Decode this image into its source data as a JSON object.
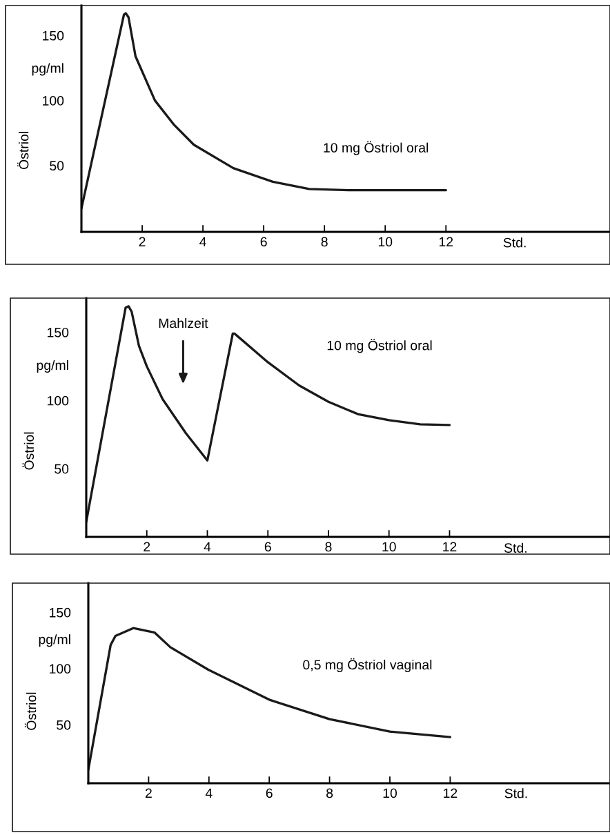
{
  "chart_data": [
    {
      "type": "line",
      "xlabel": "Std.",
      "ylabel": "Östriol",
      "marker": "none",
      "line_style": "solid",
      "x": [
        0,
        1.4,
        1.46,
        1.55,
        1.78,
        2.42,
        3.06,
        3.7,
        5,
        6.3,
        7.5,
        8.8,
        12
      ],
      "series": [
        {
          "color": "#1a1a1a",
          "values": [
            17,
            166,
            167,
            164,
            134,
            100,
            81,
            66,
            48,
            37.5,
            32,
            31,
            31
          ]
        }
      ],
      "xlim": [
        0,
        17.4
      ],
      "xticks": [
        2,
        4,
        6,
        8,
        10,
        12
      ],
      "ylim": [
        -1,
        173
      ],
      "yticks": [
        50,
        100,
        150
      ],
      "annotations": [
        "pg/ml",
        "10 mg Östriol oral"
      ]
    },
    {
      "type": "line",
      "xlabel": "Std.",
      "ylabel": "Östriol",
      "marker": "none",
      "line_style": "solid",
      "x": [
        0,
        1.3,
        1.4,
        1.5,
        1.74,
        2.0,
        2.52,
        3.29,
        4.0,
        4.84,
        4.9,
        4.95,
        6.0,
        7.03,
        8.0,
        8.97,
        10,
        11.03,
        12
      ],
      "series": [
        {
          "color": "#1a1a1a",
          "values": [
            11,
            168,
            169,
            165,
            140,
            125,
            101,
            76,
            56,
            149,
            149,
            148,
            128,
            111,
            99,
            90,
            85.5,
            82.5,
            82
          ]
        }
      ],
      "xlim": [
        0,
        17.3
      ],
      "xticks": [
        2,
        4,
        6,
        8,
        10,
        12
      ],
      "ylim": [
        0,
        175
      ],
      "yticks": [
        50,
        100,
        150
      ],
      "annotations": [
        "pg/ml",
        "Mahlzeit",
        "10 mg Östriol oral"
      ]
    },
    {
      "type": "line",
      "xlabel": "Std.",
      "ylabel": "Östriol",
      "marker": "none",
      "line_style": "solid",
      "x": [
        0,
        0.74,
        0.9,
        1.49,
        2.2,
        2.72,
        3.98,
        6.03,
        8,
        10,
        12
      ],
      "series": [
        {
          "color": "#1a1a1a",
          "values": [
            10,
            121,
            129,
            136,
            132,
            119,
            99,
            72,
            55,
            44,
            39
          ]
        }
      ],
      "xlim": [
        0,
        17.3
      ],
      "xticks": [
        2,
        4,
        6,
        8,
        10,
        12
      ],
      "ylim": [
        -2,
        176
      ],
      "yticks": [
        50,
        100,
        150
      ],
      "annotations": [
        "pg/ml",
        "0,5 mg Östriol vaginal"
      ]
    }
  ]
}
